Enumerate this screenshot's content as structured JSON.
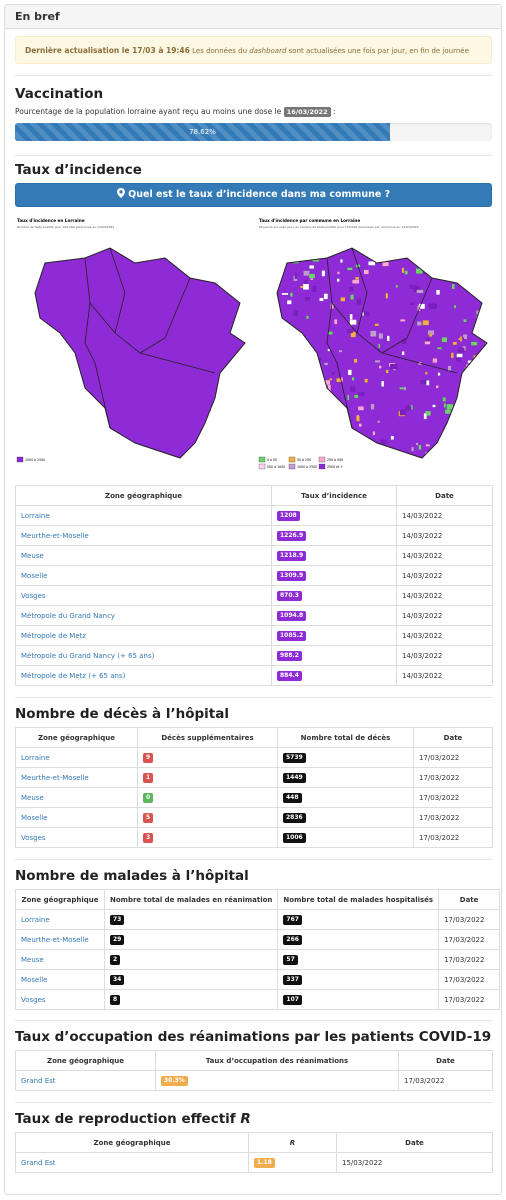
{
  "header": {
    "title": "En bref"
  },
  "alert": {
    "strong": "Dernière actualisation le 17/03 à 19:46",
    "before": "Les données du",
    "em": "dashboard",
    "after": "sont actualisées une fois par jour, en fin de journée"
  },
  "vaccination": {
    "title": "Vaccination",
    "text": "Pourcentage de la population lorraine ayant reçu au moins une dose le",
    "date": "16/03/2022",
    "colon": ":",
    "value": 78.62,
    "label": "78.62%"
  },
  "incidence": {
    "title": "Taux d’incidence",
    "button": "Quel est le taux d’incidence dans ma commune ?",
    "maps": [
      {
        "title": "Taux d'incidence en Lorraine",
        "subtitle": "Nombre de tests positifs pour 100.000 personnes au 14/03/2022",
        "legend": [
          "1000 à 2500"
        ]
      },
      {
        "title": "Taux d'incidence par commune en Lorraine",
        "subtitle": "Moyenne sur sept jours du nombre de tests positifs pour 100.000 personnes par commune au 14/03/2022",
        "legend": [
          "0 à 50",
          "50 à 250",
          "250 à 500",
          "500 à 1000",
          "1000 à 2500",
          "2500 et +"
        ]
      }
    ],
    "table": {
      "columns": [
        "Zone géographique",
        "Taux d’incidence",
        "Date"
      ],
      "rows": [
        [
          "Lorraine",
          1208,
          "14/03/2022"
        ],
        [
          "Meurthe-et-Moselle",
          1226.9,
          "14/03/2022"
        ],
        [
          "Meuse",
          1218.9,
          "14/03/2022"
        ],
        [
          "Moselle",
          1309.9,
          "14/03/2022"
        ],
        [
          "Vosges",
          870.3,
          "14/03/2022"
        ],
        [
          "Métropole du Grand Nancy",
          1094.8,
          "14/03/2022"
        ],
        [
          "Métropole de Metz",
          1085.2,
          "14/03/2022"
        ],
        [
          "Métropole du Grand Nancy (+ 65 ans)",
          988.2,
          "14/03/2022"
        ],
        [
          "Métropole de Metz (+ 65 ans)",
          884.4,
          "14/03/2022"
        ]
      ]
    }
  },
  "deces": {
    "title": "Nombre de décès à l’hôpital",
    "table": {
      "columns": [
        "Zone géographique",
        "Décès supplémentaires",
        "Nombre total de décès",
        "Date"
      ],
      "rows": [
        [
          "Lorraine",
          9,
          5739,
          "17/03/2022"
        ],
        [
          "Meurthe-et-Moselle",
          1,
          1449,
          "17/03/2022"
        ],
        [
          "Meuse",
          0,
          448,
          "17/03/2022"
        ],
        [
          "Moselle",
          5,
          2836,
          "17/03/2022"
        ],
        [
          "Vosges",
          3,
          1006,
          "17/03/2022"
        ]
      ]
    }
  },
  "malades": {
    "title": "Nombre de malades à l’hôpital",
    "table": {
      "columns": [
        "Zone géographique",
        "Nombre total de malades en réanimation",
        "Nombre total de malades hospitalisés",
        "Date"
      ],
      "rows": [
        [
          "Lorraine",
          73,
          767,
          "17/03/2022"
        ],
        [
          "Meurthe-et-Moselle",
          29,
          266,
          "17/03/2022"
        ],
        [
          "Meuse",
          2,
          57,
          "17/03/2022"
        ],
        [
          "Moselle",
          34,
          337,
          "17/03/2022"
        ],
        [
          "Vosges",
          8,
          107,
          "17/03/2022"
        ]
      ]
    }
  },
  "reanimation": {
    "title": "Taux d’occupation des réanimations par les patients COVID-19",
    "table": {
      "columns": [
        "Zone géographique",
        "Taux d’occupation des réanimations",
        "Date"
      ],
      "rows": [
        [
          "Grand Est",
          "30.3%",
          "17/03/2022"
        ]
      ]
    }
  },
  "reproduction": {
    "title": "Taux de reproduction effectif",
    "title_italic": "R",
    "table": {
      "columns": [
        "Zone géographique",
        "R",
        "Date"
      ],
      "rows": [
        [
          "Grand Est",
          1.18,
          "15/03/2022"
        ]
      ]
    }
  }
}
